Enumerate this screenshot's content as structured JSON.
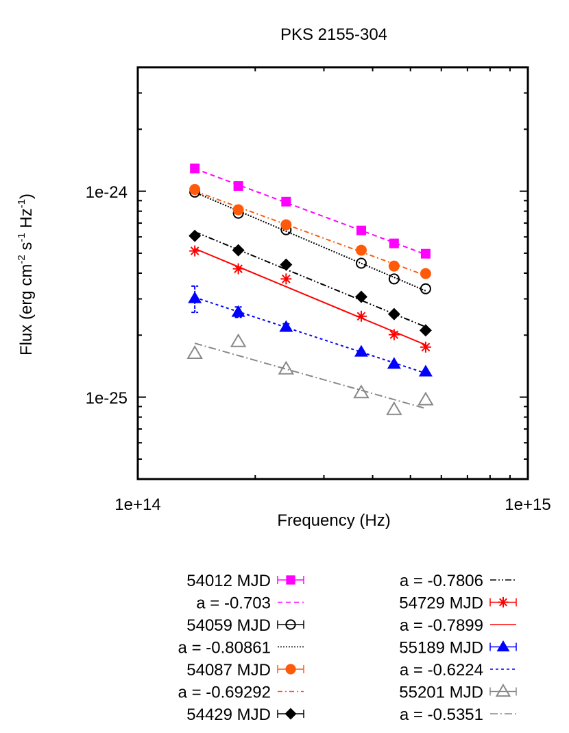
{
  "chart_data": {
    "type": "scatter",
    "title": "PKS 2155-304",
    "xlabel": "Frequency (Hz)",
    "ylabel": {
      "base": "Flux (erg cm",
      "exp1": "-2",
      "mid1": " s",
      "exp2": "-1",
      "mid2": " Hz",
      "exp3": "-1",
      "end": ")"
    },
    "xscale": "log",
    "yscale": "log",
    "xlim": [
      100000000000000.0,
      1000000000000000.0
    ],
    "ylim": [
      4e-26,
      4e-24
    ],
    "xtick_labels": [
      "1e+14",
      "1e+15"
    ],
    "ytick_labels": [
      "1e-24",
      "1e-25"
    ],
    "grid": false,
    "legend_placement": "below",
    "x": [
      140000000000000.0,
      181000000000000.0,
      240000000000000.0,
      374000000000000.0,
      454000000000000.0,
      547000000000000.0
    ],
    "series": [
      {
        "name": "54012 MJD",
        "fit_label": "a = -0.703",
        "a": -0.703,
        "color": "#ff00ff",
        "marker": "filled-square",
        "dash": "7,5",
        "values": [
          1.29e-24,
          1.06e-24,
          8.9e-25,
          6.45e-25,
          5.58e-25,
          4.97e-25
        ],
        "yerr": [
          0,
          0,
          0,
          0,
          0,
          0
        ]
      },
      {
        "name": "54059 MJD",
        "fit_label": "a = -0.80861",
        "a": -0.80861,
        "color": "#000000",
        "marker": "open-circle",
        "dash": "2,2",
        "values": [
          9.9e-25,
          7.82e-25,
          6.5e-25,
          4.47e-25,
          3.75e-25,
          3.36e-25
        ],
        "yerr": [
          0,
          0,
          0,
          0,
          0,
          0
        ]
      },
      {
        "name": "54087 MJD",
        "fit_label": "a = -0.69292",
        "a": -0.69292,
        "color": "#ff5a0a",
        "marker": "filled-circle",
        "dash": "7,4,2,4",
        "values": [
          1.02e-24,
          8.13e-25,
          6.87e-25,
          5.17e-25,
          4.33e-25,
          3.98e-25
        ],
        "yerr": [
          0,
          0,
          0,
          0,
          0,
          0
        ]
      },
      {
        "name": "54429 MJD",
        "fit_label": "a = -0.7806",
        "a": -0.7806,
        "color": "#000000",
        "marker": "filled-diamond",
        "dash": "9,3,2,3,2,3",
        "values": [
          6.07e-25,
          5.17e-25,
          4.4e-25,
          3.07e-25,
          2.53e-25,
          2.11e-25
        ],
        "yerr": [
          0,
          0,
          0,
          0,
          0,
          0
        ]
      },
      {
        "name": "54729 MJD",
        "fit_label": "a = -0.7899",
        "a": -0.7899,
        "color": "#ff0000",
        "marker": "asterisk",
        "dash": "",
        "values": [
          5.13e-25,
          4.2e-25,
          3.75e-25,
          2.47e-25,
          2.01e-25,
          1.75e-25
        ],
        "yerr": [
          0,
          0,
          0,
          0,
          0,
          0
        ]
      },
      {
        "name": "55189 MJD",
        "fit_label": "a = -0.6224",
        "a": -0.6224,
        "color": "#0000ff",
        "marker": "filled-triangle",
        "dash": "4,4",
        "values": [
          3.02e-25,
          2.59e-25,
          2.19e-25,
          1.66e-25,
          1.45e-25,
          1.33e-25
        ],
        "yerr": [
          4.4e-26,
          1.5e-26,
          8e-27,
          0,
          0,
          0
        ]
      },
      {
        "name": "55201 MJD",
        "fit_label": "a = -0.5351",
        "a": -0.5351,
        "color": "#888888",
        "marker": "open-triangle",
        "dash": "11,4,2,4",
        "values": [
          1.63e-25,
          1.86e-25,
          1.37e-25,
          1.05e-25,
          8.7e-26,
          9.7e-26
        ],
        "yerr": [
          0,
          0,
          0,
          0,
          0,
          0
        ]
      }
    ]
  }
}
